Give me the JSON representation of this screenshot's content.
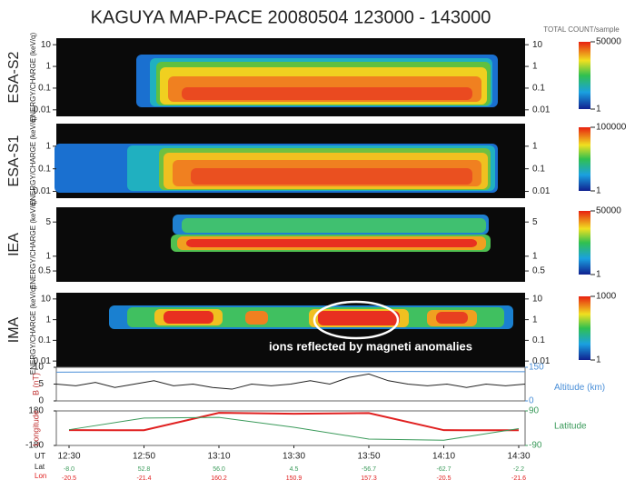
{
  "title": "KAGUYA MAP-PACE  20080504   123000 - 143000",
  "colorbar_title": "TOTAL COUNT/sample",
  "annotation": "ions reflected by magneti anomalies",
  "ut_label": "UT",
  "lat_label": "Lat",
  "lon_label": "Lon",
  "chart_data": [
    {
      "type": "spectrogram",
      "panel_label": "ESA-S2",
      "ylabel": "ENERGY/CHARGE (keV/q)",
      "log_scale": true,
      "ylim": [
        0.005,
        20
      ],
      "yticks": [
        10,
        1,
        0.1,
        0.01
      ],
      "colorbar_ticks": [
        50000,
        1
      ]
    },
    {
      "type": "spectrogram",
      "panel_label": "ESA-S1",
      "ylabel": "ENERGY/CHARGE (keV/q)",
      "log_scale": true,
      "ylim": [
        0.005,
        10
      ],
      "yticks": [
        1,
        0.1,
        0.01
      ],
      "colorbar_ticks": [
        100000,
        1
      ]
    },
    {
      "type": "spectrogram",
      "panel_label": "IEA",
      "ylabel": "ENERGY/CHARGE (keV/q)",
      "log_scale": true,
      "ylim": [
        0.3,
        10
      ],
      "yticks": [
        5,
        1,
        0.5
      ],
      "colorbar_ticks": [
        50000,
        1
      ]
    },
    {
      "type": "spectrogram",
      "panel_label": "IMA",
      "ylabel": "ENERGY/CHARGE (keV/q)",
      "log_scale": true,
      "ylim": [
        0.005,
        20
      ],
      "yticks": [
        10,
        1,
        0.1,
        0.01
      ],
      "colorbar_ticks": [
        1000,
        1
      ]
    },
    {
      "type": "line",
      "ylabel": "B (nT)",
      "ylim": [
        0,
        10
      ],
      "yticks": [
        0,
        5,
        10
      ],
      "y2label": "Altitude (km)",
      "y2lim": [
        0,
        150
      ],
      "y2ticks": [
        0,
        150
      ],
      "series": [
        {
          "name": "B",
          "color": "#222222",
          "values": [
            5,
            4.5,
            5.5,
            4,
            5,
            6,
            4.5,
            5,
            4,
            3.5,
            5,
            4.5,
            5,
            6,
            5,
            7,
            8,
            6,
            5,
            4.5,
            5,
            4,
            5,
            4.5,
            5
          ]
        },
        {
          "name": "Altitude",
          "color": "#4a8fd8",
          "axis": "y2",
          "values": [
            128,
            130,
            130,
            131,
            130
          ]
        }
      ]
    },
    {
      "type": "line",
      "ylabel": "Longitude",
      "ylim": [
        -180,
        180
      ],
      "yticks": [
        180,
        -180
      ],
      "y2label": "Latitude",
      "y2lim": [
        -90,
        90
      ],
      "y2ticks": [
        90,
        -90
      ],
      "categories": [
        "12:30",
        "12:50",
        "13:10",
        "13:30",
        "13:50",
        "14:10",
        "14:30"
      ],
      "series": [
        {
          "name": "Lon",
          "color": "#e02020",
          "values": [
            -20.5,
            -21.4,
            160.2,
            150.9,
            157.3,
            -20.5,
            -21.6
          ]
        },
        {
          "name": "Lat",
          "color": "#3a9a5a",
          "axis": "y2",
          "values": [
            -8.0,
            52.8,
            56.0,
            4.5,
            -56.7,
            -62.7,
            -2.2
          ],
          "value_labels": [
            "-8.0",
            "52.8",
            "56.0",
            "4.5",
            "-56.7",
            "-62.7",
            "-2.2"
          ]
        }
      ]
    }
  ]
}
